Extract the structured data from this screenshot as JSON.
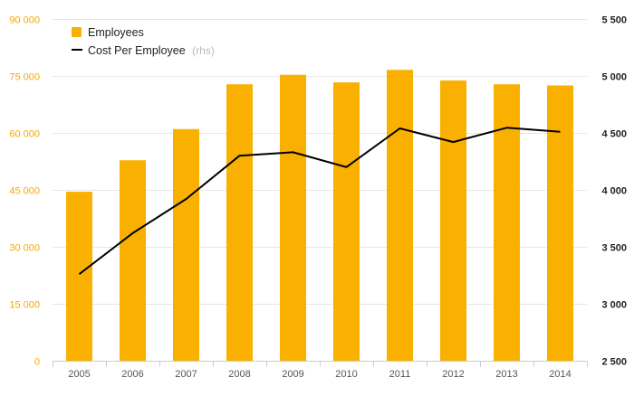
{
  "chart_data": {
    "type": "bar+line",
    "categories": [
      "2005",
      "2006",
      "2007",
      "2008",
      "2009",
      "2010",
      "2011",
      "2012",
      "2013",
      "2014"
    ],
    "series": [
      {
        "name": "Employees",
        "type": "bar",
        "axis": "left",
        "color": "#f9b000",
        "values": [
          44500,
          52800,
          61000,
          72800,
          75300,
          73300,
          76600,
          73800,
          72800,
          72500
        ]
      },
      {
        "name": "Cost Per Employee",
        "type": "line",
        "axis": "right",
        "color": "#000000",
        "values": [
          3260,
          3620,
          3920,
          4300,
          4330,
          4200,
          4540,
          4420,
          4545,
          4510
        ]
      }
    ],
    "y_left": {
      "min": 0,
      "max": 90000,
      "ticks": [
        0,
        15000,
        30000,
        45000,
        60000,
        75000,
        90000
      ],
      "tick_labels": [
        "0",
        "15 000",
        "30 000",
        "45 000",
        "60 000",
        "75 000",
        "90 000"
      ],
      "color": "#f5a800"
    },
    "y_right": {
      "min": 2500,
      "max": 5500,
      "ticks": [
        2500,
        3000,
        3500,
        4000,
        4500,
        5000,
        5500
      ],
      "tick_labels": [
        "2 500",
        "3 000",
        "3 500",
        "4 000",
        "4 500",
        "5 000",
        "5 500"
      ],
      "color": "#222222"
    },
    "legend": {
      "position": "top-left",
      "items": [
        {
          "label": "Employees",
          "note": ""
        },
        {
          "label": "Cost Per Employee",
          "note": "(rhs)"
        }
      ]
    },
    "grid": true
  }
}
